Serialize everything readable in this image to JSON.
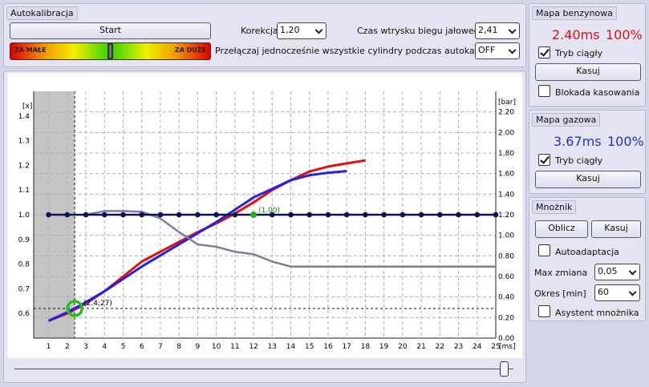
{
  "autocal": {
    "title": "Autokalibracja",
    "start_label": "Start",
    "too_small": "ZA MAŁE",
    "too_big": "ZA DUŻE",
    "correction_label": "Korekcja",
    "correction_value": "1,20",
    "idle_label": "Czas wtrysku biegu jałowego",
    "idle_value": "2,41",
    "switch_label": "Przełączaj jednocześnie wszystkie cylindry podczas autokalibracji",
    "switch_value": "OFF",
    "slider_level": 0.5
  },
  "petrol": {
    "title": "Mapa benzynowa",
    "time": "2.40ms",
    "percent": "100%",
    "continuous": "Tryb ciągły",
    "continuous_checked": true,
    "reset": "Kasuj",
    "lock": "Blokada kasowania",
    "lock_checked": false
  },
  "gas": {
    "title": "Mapa gazowa",
    "time": "3.67ms",
    "percent": "100%",
    "continuous": "Tryb ciągły",
    "continuous_checked": true,
    "reset": "Kasuj"
  },
  "mult": {
    "title": "Mnożnik",
    "calc": "Oblicz",
    "reset": "Kasuj",
    "auto": "Autoadaptacja",
    "max_label": "Max zmiana",
    "max_value": "0,05",
    "period_label": "Okres [min]",
    "period_value": "60",
    "assistant": "Asystent mnożnika"
  },
  "colors": {
    "red": "#e01010",
    "blue": "#1010d0",
    "gas_blue": "#3838d8",
    "navy": "#10105a",
    "gray": "#7880a0"
  },
  "chart_data": {
    "type": "line",
    "x_unit": "[ms]",
    "y_left_unit": "[x]",
    "y_right_unit": "[bar]",
    "xlim": [
      0.2,
      25
    ],
    "ylim_left": [
      0.5,
      1.5
    ],
    "ylim_right": [
      0.0,
      2.4
    ],
    "x_ticks": [
      1,
      2,
      3,
      4,
      5,
      6,
      7,
      8,
      9,
      10,
      11,
      12,
      13,
      14,
      15,
      16,
      17,
      18,
      19,
      20,
      21,
      22,
      23,
      24,
      25
    ],
    "y_left_ticks": [
      "0.6",
      "0.7",
      "0.8",
      "0.9",
      "1.0",
      "1.1",
      "1.2",
      "1.3",
      "1.4"
    ],
    "y_right_ticks": [
      "0.00",
      "0.20",
      "0.40",
      "0.60",
      "0.80",
      "1.00",
      "1.20",
      "1.40",
      "1.60",
      "1.80",
      "2.00",
      "2.20"
    ],
    "shaded_x": [
      0.2,
      2.4
    ],
    "cursor_y": 0.62,
    "marker": {
      "x": 2.4,
      "y": 0.62,
      "label": "(2.4;27)"
    },
    "highlight": {
      "x": 12,
      "y": 1.0,
      "label": "(1.00)"
    },
    "series": [
      {
        "color": "#e01010",
        "points": [
          [
            1,
            0.57
          ],
          [
            2,
            0.6
          ],
          [
            3,
            0.64
          ],
          [
            4,
            0.69
          ],
          [
            5,
            0.75
          ],
          [
            6,
            0.81
          ],
          [
            7,
            0.85
          ],
          [
            8,
            0.89
          ],
          [
            9,
            0.93
          ],
          [
            10,
            0.965
          ],
          [
            11,
            1.005
          ],
          [
            12,
            1.05
          ],
          [
            13,
            1.1
          ],
          [
            14,
            1.14
          ],
          [
            15,
            1.175
          ],
          [
            16,
            1.195
          ],
          [
            17,
            1.208
          ],
          [
            18,
            1.22
          ]
        ]
      },
      {
        "color": "#2222e0",
        "points": [
          [
            1,
            0.57
          ],
          [
            2,
            0.605
          ],
          [
            3,
            0.645
          ],
          [
            4,
            0.69
          ],
          [
            5,
            0.74
          ],
          [
            6,
            0.79
          ],
          [
            7,
            0.835
          ],
          [
            8,
            0.88
          ],
          [
            9,
            0.925
          ],
          [
            10,
            0.97
          ],
          [
            11,
            1.02
          ],
          [
            12,
            1.07
          ],
          [
            13,
            1.105
          ],
          [
            14,
            1.14
          ],
          [
            15,
            1.16
          ],
          [
            16,
            1.17
          ],
          [
            17,
            1.177
          ]
        ]
      },
      {
        "color": "#7880a0",
        "points": [
          [
            3,
            1.0
          ],
          [
            4,
            1.015
          ],
          [
            5,
            1.015
          ],
          [
            6,
            1.012
          ],
          [
            7,
            0.985
          ],
          [
            8,
            0.93
          ],
          [
            9,
            0.88
          ],
          [
            10,
            0.87
          ],
          [
            11,
            0.85
          ],
          [
            12,
            0.84
          ],
          [
            13,
            0.81
          ],
          [
            14,
            0.79
          ],
          [
            15,
            0.79
          ],
          [
            25,
            0.79
          ]
        ]
      },
      {
        "color": "#10105a",
        "points": [
          [
            1,
            1.0
          ],
          [
            2,
            1.0
          ],
          [
            3,
            1.0
          ],
          [
            4,
            1.0
          ],
          [
            5,
            1.0
          ],
          [
            6,
            1.0
          ],
          [
            7,
            1.0
          ],
          [
            8,
            1.0
          ],
          [
            9,
            1.0
          ],
          [
            10,
            1.0
          ],
          [
            11,
            1.0
          ],
          [
            12,
            1.0
          ],
          [
            13,
            1.0
          ],
          [
            14,
            1.0
          ],
          [
            15,
            1.0
          ],
          [
            16,
            1.0
          ],
          [
            17,
            1.0
          ],
          [
            18,
            1.0
          ],
          [
            19,
            1.0
          ],
          [
            20,
            1.0
          ],
          [
            21,
            1.0
          ],
          [
            22,
            1.0
          ],
          [
            23,
            1.0
          ],
          [
            24,
            1.0
          ],
          [
            25,
            1.0
          ]
        ]
      }
    ]
  },
  "bottom_slider_value": 0.98
}
